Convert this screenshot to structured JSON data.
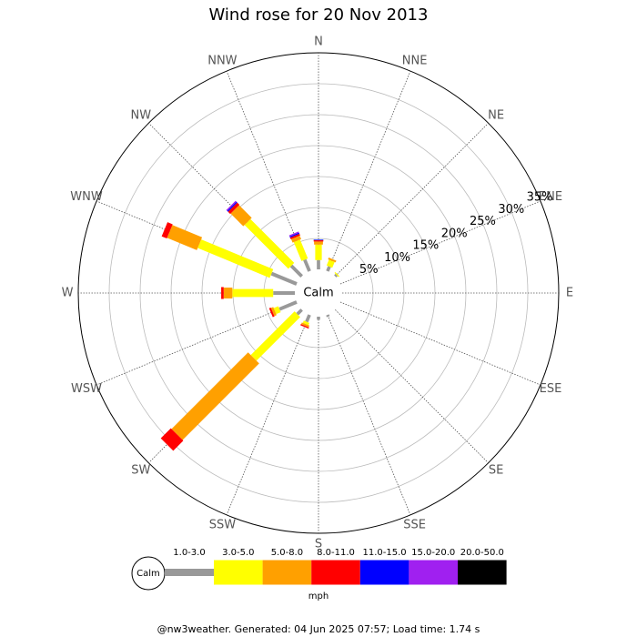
{
  "chart_data": {
    "type": "windrose",
    "title": "Wind rose for 20 Nov 2013",
    "categories": [
      "N",
      "NNE",
      "NE",
      "ENE",
      "E",
      "ESE",
      "SE",
      "SSE",
      "S",
      "SSW",
      "SW",
      "WSW",
      "W",
      "WNW",
      "NW",
      "NNW"
    ],
    "calm_label": "Calm",
    "rlim": [
      0,
      35
    ],
    "rticks": [
      {
        "value": 5,
        "label": "5%"
      },
      {
        "value": 10,
        "label": "10%"
      },
      {
        "value": 15,
        "label": "15%"
      },
      {
        "value": 20,
        "label": "20%"
      },
      {
        "value": 25,
        "label": "25%"
      },
      {
        "value": 30,
        "label": "30%"
      },
      {
        "value": 35,
        "label": "35%"
      }
    ],
    "series": [
      {
        "name": "1.0-3.0",
        "color": "#999999",
        "values": [
          1.5,
          0.8,
          0.3,
          0,
          0,
          0,
          0,
          0.3,
          0.5,
          1.2,
          1.0,
          3.0,
          3.5,
          4.4,
          2.4,
          2.0
        ]
      },
      {
        "name": "3.0-5.0",
        "color": "#ffff00",
        "values": [
          2.5,
          1.0,
          0.2,
          0,
          0,
          0,
          0,
          0,
          0,
          0.4,
          10.0,
          0.8,
          6.6,
          12.6,
          10.0,
          3.3
        ]
      },
      {
        "name": "5.0-8.0",
        "color": "#ffa000",
        "values": [
          0.5,
          0.3,
          0,
          0,
          0,
          0,
          0,
          0,
          0,
          0.3,
          17.5,
          0.4,
          1.4,
          5.2,
          2.9,
          0.6
        ]
      },
      {
        "name": "8.0-11.0",
        "color": "#ff0000",
        "values": [
          0.2,
          0,
          0,
          0,
          0,
          0,
          0,
          0,
          0,
          0.2,
          2.3,
          0.3,
          0.4,
          0.9,
          0.5,
          0.3
        ]
      },
      {
        "name": "11.0-15.0",
        "color": "#0000ff",
        "values": [
          0.1,
          0,
          0,
          0,
          0,
          0,
          0,
          0,
          0,
          0,
          0,
          0,
          0,
          0,
          0.2,
          0.2
        ]
      },
      {
        "name": "15.0-20.0",
        "color": "#a020f0",
        "values": [
          0,
          0,
          0,
          0,
          0,
          0,
          0,
          0,
          0,
          0,
          0,
          0,
          0,
          0,
          0.2,
          0.2
        ]
      },
      {
        "name": "20.0-50.0",
        "color": "#000000",
        "values": [
          0,
          0,
          0,
          0,
          0,
          0,
          0,
          0,
          0,
          0,
          0,
          0,
          0,
          0,
          0,
          0
        ]
      }
    ],
    "unit_label": "mph",
    "footer": "@nw3weather. Generated: 04 Jun 2025 07:57; Load time: 1.74 s"
  }
}
